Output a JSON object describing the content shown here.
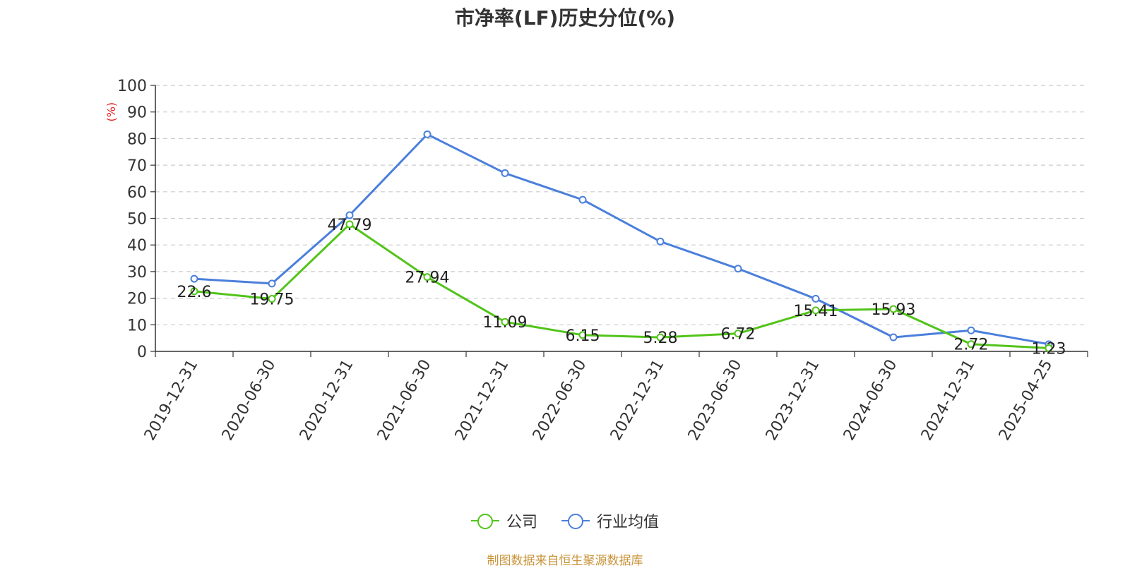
{
  "chart_data": {
    "type": "line",
    "title": "市净率(LF)历史分位(%)",
    "ylabel": "(%)",
    "ylim": [
      0,
      100
    ],
    "yticks": [
      0,
      10,
      20,
      30,
      40,
      50,
      60,
      70,
      80,
      90,
      100
    ],
    "grid": true,
    "legend_position": "bottom",
    "categories": [
      "2019-12-31",
      "2020-06-30",
      "2020-12-31",
      "2021-06-30",
      "2021-12-31",
      "2022-06-30",
      "2022-12-31",
      "2023-06-30",
      "2023-12-31",
      "2024-06-30",
      "2024-12-31",
      "2025-04-25"
    ],
    "series": [
      {
        "name": "公司",
        "color": "#52c41a",
        "show_labels": true,
        "values": [
          22.6,
          19.75,
          47.79,
          27.94,
          11.09,
          6.15,
          5.28,
          6.72,
          15.41,
          15.93,
          2.72,
          1.23
        ]
      },
      {
        "name": "行业均值",
        "color": "#4a7fdb",
        "show_labels": false,
        "values": [
          27.3,
          25.5,
          51.2,
          81.6,
          67.0,
          57.0,
          41.3,
          31.1,
          19.8,
          5.3,
          7.9,
          2.7
        ]
      }
    ]
  },
  "source_note": "制图数据来自恒生聚源数据库"
}
